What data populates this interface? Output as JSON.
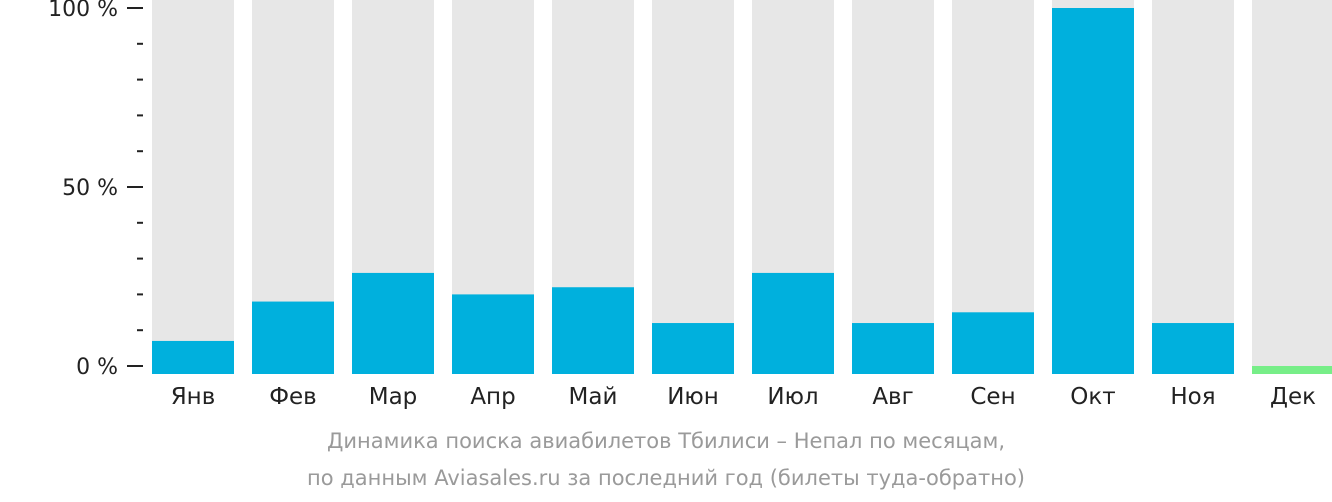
{
  "chart_data": {
    "type": "bar",
    "categories": [
      "Янв",
      "Фев",
      "Мар",
      "Апр",
      "Май",
      "Июн",
      "Июл",
      "Авг",
      "Сен",
      "Окт",
      "Ноя",
      "Дек"
    ],
    "values": [
      7,
      18,
      26,
      20,
      22,
      12,
      26,
      12,
      15,
      100,
      12,
      2
    ],
    "ylim": [
      0,
      100
    ],
    "yticks": [
      {
        "value": 0,
        "label": "0 %"
      },
      {
        "value": 50,
        "label": "50 %"
      },
      {
        "value": 100,
        "label": "100 %"
      }
    ],
    "minor_ticks_per_major": 5,
    "highlight_index": 11,
    "title": "Динамика поиска авиабилетов Тбилиси – Непал по месяцам,",
    "subtitle": "по данным Aviasales.ru за последний год (билеты туда-обратно)",
    "colors": {
      "bar": "#00b0dd",
      "highlight": "#77ee88",
      "track": "#e7e7e7",
      "tick": "#222222",
      "caption": "#9a9a9a"
    }
  }
}
